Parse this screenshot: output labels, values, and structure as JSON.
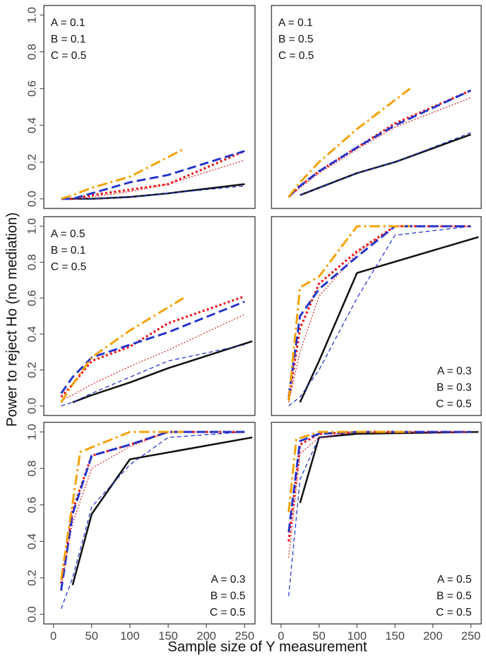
{
  "figure": {
    "xlabel": "Sample size of Y measurement",
    "ylabel": "Power to reject Ho (no mediation)"
  },
  "chart_data": [
    {
      "type": "line",
      "panel": "top-left",
      "annotation": [
        "A = 0.1",
        "B = 0.1",
        "C = 0.5"
      ],
      "annotation_placement": "top-left",
      "xlim": [
        0,
        260
      ],
      "ylim": [
        0,
        1
      ],
      "xticks": [
        "0",
        "50",
        "100",
        "150",
        "200",
        "250"
      ],
      "yticks": [
        "0.0",
        "0.2",
        "0.4",
        "0.6",
        "0.8",
        "1.0"
      ],
      "show_xticks": false,
      "show_yticks": true,
      "series": [
        {
          "name": "black-solid",
          "x": [
            10,
            25,
            50,
            100,
            150,
            250
          ],
          "y": [
            0.0,
            0.0,
            0.0,
            0.01,
            0.03,
            0.08
          ]
        },
        {
          "name": "blue-thin-dashed",
          "x": [
            10,
            25,
            50,
            100,
            150,
            250
          ],
          "y": [
            0.0,
            0.0,
            0.0,
            0.01,
            0.03,
            0.07
          ]
        },
        {
          "name": "red-thin-dotted",
          "x": [
            10,
            25,
            50,
            100,
            150,
            250
          ],
          "y": [
            0.0,
            0.0,
            0.01,
            0.04,
            0.08,
            0.21
          ]
        },
        {
          "name": "red-thick-dotted",
          "x": [
            10,
            25,
            50,
            100,
            150,
            250
          ],
          "y": [
            0.0,
            0.0,
            0.02,
            0.05,
            0.08,
            0.26
          ]
        },
        {
          "name": "blue-thick-dashed",
          "x": [
            10,
            25,
            50,
            100,
            150,
            250
          ],
          "y": [
            0.0,
            0.0,
            0.03,
            0.09,
            0.13,
            0.26
          ]
        },
        {
          "name": "orange-dashdot",
          "x": [
            10,
            25,
            50,
            100,
            170
          ],
          "y": [
            0.0,
            0.02,
            0.06,
            0.12,
            0.27
          ]
        }
      ]
    },
    {
      "type": "line",
      "panel": "top-right",
      "annotation": [
        "A = 0.1",
        "B = 0.5",
        "C = 0.5"
      ],
      "annotation_placement": "top-left",
      "xlim": [
        0,
        260
      ],
      "ylim": [
        0,
        1
      ],
      "xticks": [
        "0",
        "50",
        "100",
        "150",
        "200",
        "250"
      ],
      "yticks": [
        "0.0",
        "0.2",
        "0.4",
        "0.6",
        "0.8",
        "1.0"
      ],
      "show_xticks": false,
      "show_yticks": false,
      "series": [
        {
          "name": "black-solid",
          "x": [
            25,
            50,
            100,
            150,
            250
          ],
          "y": [
            0.02,
            0.06,
            0.14,
            0.2,
            0.35
          ]
        },
        {
          "name": "blue-thin-dashed",
          "x": [
            25,
            50,
            100,
            150,
            250
          ],
          "y": [
            0.02,
            0.06,
            0.14,
            0.2,
            0.36
          ]
        },
        {
          "name": "red-thin-dotted",
          "x": [
            10,
            25,
            50,
            100,
            150,
            250
          ],
          "y": [
            0.01,
            0.06,
            0.14,
            0.27,
            0.39,
            0.55
          ]
        },
        {
          "name": "red-thick-dotted",
          "x": [
            10,
            25,
            50,
            100,
            150,
            250
          ],
          "y": [
            0.01,
            0.07,
            0.15,
            0.28,
            0.41,
            0.59
          ]
        },
        {
          "name": "blue-thick-dashed",
          "x": [
            10,
            25,
            50,
            100,
            150,
            250
          ],
          "y": [
            0.01,
            0.07,
            0.15,
            0.28,
            0.4,
            0.59
          ]
        },
        {
          "name": "orange-dashdot",
          "x": [
            10,
            25,
            50,
            100,
            170
          ],
          "y": [
            0.01,
            0.09,
            0.2,
            0.38,
            0.6
          ]
        }
      ]
    },
    {
      "type": "line",
      "panel": "middle-left",
      "annotation": [
        "A = 0.5",
        "B = 0.1",
        "C = 0.5"
      ],
      "annotation_placement": "top-left",
      "xlim": [
        0,
        260
      ],
      "ylim": [
        0,
        1
      ],
      "xticks": [
        "0",
        "50",
        "100",
        "150",
        "200",
        "250"
      ],
      "yticks": [
        "0.0",
        "0.2",
        "0.4",
        "0.6",
        "0.8",
        "1.0"
      ],
      "show_xticks": false,
      "show_yticks": true,
      "series": [
        {
          "name": "black-solid",
          "x": [
            25,
            50,
            100,
            150,
            260
          ],
          "y": [
            0.02,
            0.06,
            0.13,
            0.21,
            0.36
          ]
        },
        {
          "name": "blue-thin-dashed",
          "x": [
            10,
            25,
            50,
            100,
            150,
            250
          ],
          "y": [
            0.0,
            0.02,
            0.07,
            0.16,
            0.25,
            0.34
          ]
        },
        {
          "name": "red-thin-dotted",
          "x": [
            10,
            25,
            50,
            100,
            150,
            250
          ],
          "y": [
            0.03,
            0.06,
            0.12,
            0.22,
            0.31,
            0.51
          ]
        },
        {
          "name": "red-thick-dotted",
          "x": [
            10,
            25,
            50,
            100,
            150,
            250
          ],
          "y": [
            0.05,
            0.12,
            0.25,
            0.33,
            0.46,
            0.61
          ]
        },
        {
          "name": "blue-thick-dashed",
          "x": [
            10,
            25,
            50,
            100,
            150,
            250
          ],
          "y": [
            0.07,
            0.16,
            0.27,
            0.34,
            0.41,
            0.58
          ]
        },
        {
          "name": "orange-dashdot",
          "x": [
            10,
            25,
            50,
            100,
            170
          ],
          "y": [
            0.02,
            0.12,
            0.27,
            0.42,
            0.6
          ]
        }
      ]
    },
    {
      "type": "line",
      "panel": "middle-right",
      "annotation": [
        "A = 0.3",
        "B = 0.3",
        "C = 0.5"
      ],
      "annotation_placement": "bottom-right",
      "xlim": [
        0,
        260
      ],
      "ylim": [
        0,
        1
      ],
      "xticks": [
        "0",
        "50",
        "100",
        "150",
        "200",
        "250"
      ],
      "yticks": [
        "0.0",
        "0.2",
        "0.4",
        "0.6",
        "0.8",
        "1.0"
      ],
      "show_xticks": false,
      "show_yticks": false,
      "series": [
        {
          "name": "black-solid",
          "x": [
            25,
            50,
            100,
            260
          ],
          "y": [
            0.02,
            0.25,
            0.74,
            0.94
          ]
        },
        {
          "name": "blue-thin-dashed",
          "x": [
            10,
            25,
            50,
            100,
            150,
            250
          ],
          "y": [
            0.0,
            0.05,
            0.2,
            0.6,
            0.95,
            1.0
          ]
        },
        {
          "name": "red-thin-dotted",
          "x": [
            10,
            25,
            50,
            100,
            150,
            250
          ],
          "y": [
            0.02,
            0.3,
            0.61,
            0.85,
            1.0,
            1.0
          ]
        },
        {
          "name": "red-thick-dotted",
          "x": [
            10,
            25,
            50,
            100,
            150,
            250
          ],
          "y": [
            0.03,
            0.43,
            0.68,
            0.86,
            1.0,
            1.0
          ]
        },
        {
          "name": "blue-thick-dashed",
          "x": [
            10,
            25,
            50,
            100,
            150,
            250
          ],
          "y": [
            0.05,
            0.5,
            0.65,
            0.83,
            1.0,
            1.0
          ]
        },
        {
          "name": "orange-dashdot",
          "x": [
            10,
            25,
            50,
            100,
            170
          ],
          "y": [
            0.03,
            0.66,
            0.72,
            1.0,
            1.0
          ]
        }
      ]
    },
    {
      "type": "line",
      "panel": "bottom-left",
      "annotation": [
        "A = 0.3",
        "B = 0.5",
        "C = 0.5"
      ],
      "annotation_placement": "bottom-right",
      "xlim": [
        0,
        260
      ],
      "ylim": [
        0,
        1
      ],
      "xticks": [
        "0",
        "50",
        "100",
        "150",
        "200",
        "250"
      ],
      "yticks": [
        "0.0",
        "0.2",
        "0.4",
        "0.6",
        "0.8",
        "1.0"
      ],
      "show_xticks": true,
      "show_yticks": true,
      "series": [
        {
          "name": "black-solid",
          "x": [
            25,
            50,
            100,
            260
          ],
          "y": [
            0.16,
            0.55,
            0.85,
            0.97
          ]
        },
        {
          "name": "blue-thin-dashed",
          "x": [
            10,
            25,
            50,
            100,
            150,
            250
          ],
          "y": [
            0.03,
            0.2,
            0.59,
            0.82,
            0.97,
            1.0
          ]
        },
        {
          "name": "red-thin-dotted",
          "x": [
            10,
            25,
            50,
            100,
            150,
            250
          ],
          "y": [
            0.15,
            0.5,
            0.8,
            0.92,
            1.0,
            1.0
          ]
        },
        {
          "name": "red-thick-dotted",
          "x": [
            10,
            25,
            50,
            100,
            150,
            250
          ],
          "y": [
            0.17,
            0.57,
            0.87,
            0.93,
            1.0,
            1.0
          ]
        },
        {
          "name": "blue-thick-dashed",
          "x": [
            10,
            25,
            50,
            100,
            150,
            250
          ],
          "y": [
            0.13,
            0.55,
            0.87,
            0.93,
            1.0,
            1.0
          ]
        },
        {
          "name": "orange-dashdot",
          "x": [
            10,
            35,
            100,
            170
          ],
          "y": [
            0.19,
            0.89,
            1.0,
            1.0
          ]
        }
      ]
    },
    {
      "type": "line",
      "panel": "bottom-right",
      "annotation": [
        "A = 0.5",
        "B = 0.5",
        "C = 0.5"
      ],
      "annotation_placement": "bottom-right",
      "xlim": [
        0,
        260
      ],
      "ylim": [
        0,
        1
      ],
      "xticks": [
        "0",
        "50",
        "100",
        "150",
        "200",
        "250"
      ],
      "yticks": [
        "0.0",
        "0.2",
        "0.4",
        "0.6",
        "0.8",
        "1.0"
      ],
      "show_xticks": true,
      "show_yticks": false,
      "series": [
        {
          "name": "black-solid",
          "x": [
            25,
            50,
            100,
            260
          ],
          "y": [
            0.61,
            0.97,
            0.99,
            1.0
          ]
        },
        {
          "name": "blue-thin-dashed",
          "x": [
            10,
            25,
            50,
            100,
            150,
            250
          ],
          "y": [
            0.1,
            0.74,
            0.97,
            1.0,
            1.0,
            1.0
          ]
        },
        {
          "name": "red-thin-dotted",
          "x": [
            10,
            25,
            50,
            100,
            150,
            250
          ],
          "y": [
            0.31,
            0.88,
            0.97,
            1.0,
            1.0,
            1.0
          ]
        },
        {
          "name": "red-thick-dotted",
          "x": [
            10,
            25,
            50,
            100,
            150,
            250
          ],
          "y": [
            0.4,
            0.93,
            0.99,
            1.0,
            1.0,
            1.0
          ]
        },
        {
          "name": "blue-thick-dashed",
          "x": [
            10,
            25,
            50,
            100,
            150,
            250
          ],
          "y": [
            0.45,
            0.95,
            0.99,
            1.0,
            1.0,
            1.0
          ]
        },
        {
          "name": "orange-dashdot",
          "x": [
            10,
            20,
            50,
            100,
            170
          ],
          "y": [
            0.56,
            0.96,
            1.0,
            1.0,
            1.0
          ]
        }
      ]
    }
  ],
  "series_styles": {
    "black-solid": {
      "color": "#111111"
    },
    "blue-thin-dashed": {
      "color": "#2233cc"
    },
    "red-thin-dotted": {
      "color": "#dd2222"
    },
    "red-thick-dotted": {
      "color": "#ee1111"
    },
    "blue-thick-dashed": {
      "color": "#2233cc"
    },
    "orange-dashdot": {
      "color": "#f5a000"
    }
  }
}
